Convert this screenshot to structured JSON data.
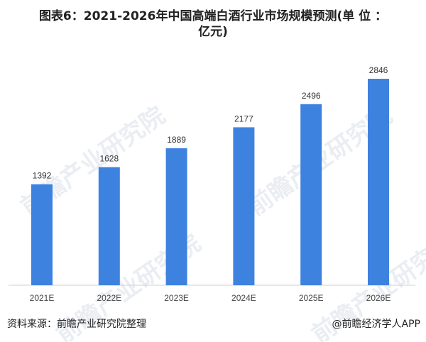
{
  "title_line1": "图表6：2021-2026年中国高端白酒行业市场规模预测(单 位 ：",
  "title_line2": "亿元)",
  "watermark": "前瞻产业研究院",
  "source": "资料来源：前瞻产业研究院整理",
  "credit": "@前瞻经济学人APP",
  "chart_data": {
    "type": "bar",
    "title": "图表6：2021-2026年中国高端白酒行业市场规模预测(单位：亿元)",
    "categories": [
      "2021E",
      "2022E",
      "2023E",
      "2024E",
      "2025E",
      "2026E"
    ],
    "values": [
      1392,
      1628,
      1889,
      2177,
      2496,
      2846
    ],
    "xlabel": "",
    "ylabel": "",
    "ylim": [
      0,
      2846
    ],
    "grid": false,
    "color": "#3e82e0"
  }
}
